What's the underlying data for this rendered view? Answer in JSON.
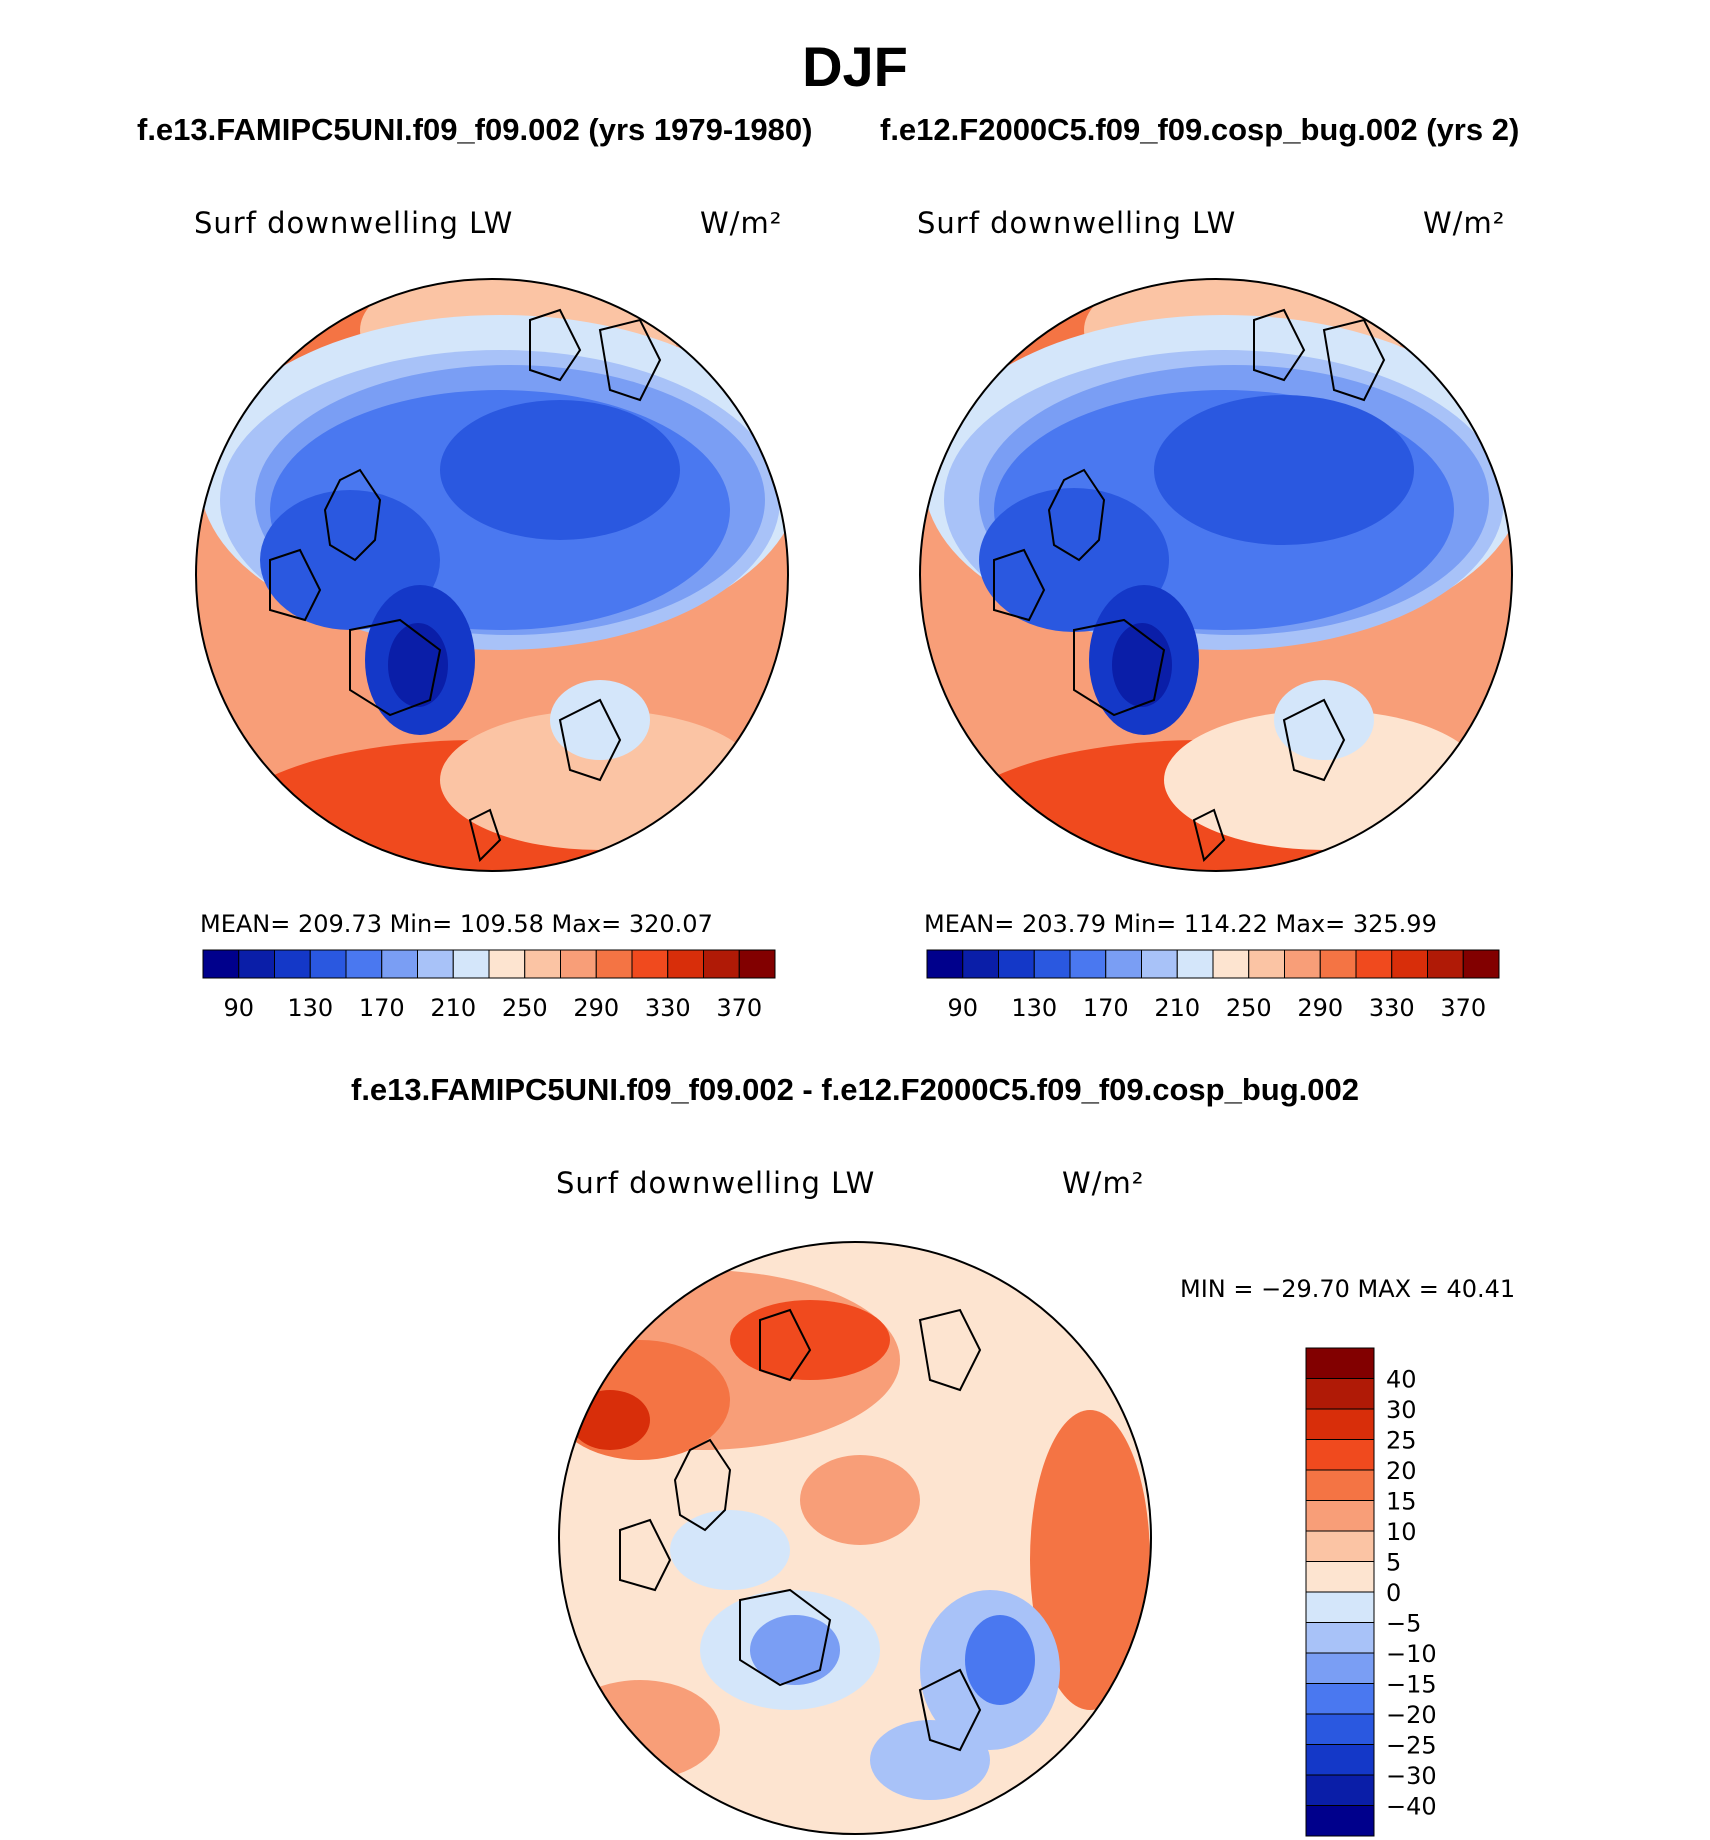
{
  "figure": {
    "title": "DJF",
    "subtitle_left": "f.e13.FAMIPC5UNI.f09_f09.002 (yrs 1979-1980)",
    "subtitle_right": "f.e12.F2000C5.f09_f09.cosp_bug.002 (yrs 2)",
    "diff_title": "f.e13.FAMIPC5UNI.f09_f09.002 - f.e12.F2000C5.f09_f09.cosp_bug.002"
  },
  "colors": {
    "abs_palette": [
      "#00008c",
      "#0a1ea8",
      "#1438c8",
      "#2a58e0",
      "#4a78f0",
      "#7a9ef4",
      "#a8c2f8",
      "#d4e6fa",
      "#fde4d0",
      "#fbc4a4",
      "#f89e78",
      "#f47444",
      "#f04a1e",
      "#d82e0a",
      "#b01a06",
      "#820000"
    ],
    "diff_palette": [
      "#00008c",
      "#0a1ea8",
      "#1438c8",
      "#2a58e0",
      "#4a78f0",
      "#7a9ef4",
      "#a8c2f8",
      "#d4e6fa",
      "#fde4d0",
      "#fbc4a4",
      "#f89e78",
      "#f47444",
      "#f04a1e",
      "#d82e0a",
      "#b01a06",
      "#820000"
    ]
  },
  "chart_data": [
    {
      "type": "heatmap",
      "projection": "north polar stereographic",
      "season": "DJF",
      "case": "f.e13.FAMIPC5UNI.f09_f09.002 (yrs 1979-1980)",
      "label_left": "Surf downwelling LW",
      "label_right": "W/m²",
      "units": "W/m2",
      "stats": {
        "mean": "209.73",
        "min": "109.58",
        "max": "320.07"
      },
      "stats_text": "MEAN= 209.73   Min= 109.58   Max= 320.07",
      "colorbar_ticks": [
        "90",
        "130",
        "170",
        "210",
        "250",
        "290",
        "330",
        "370"
      ],
      "contour_levels": [
        90,
        100,
        110,
        130,
        150,
        170,
        190,
        210,
        230,
        250,
        270,
        290,
        310,
        330,
        350,
        370
      ]
    },
    {
      "type": "heatmap",
      "projection": "north polar stereographic",
      "season": "DJF",
      "case": "f.e12.F2000C5.f09_f09.cosp_bug.002 (yrs 2)",
      "label_left": "Surf downwelling LW",
      "label_right": "W/m²",
      "units": "W/m2",
      "stats": {
        "mean": "203.79",
        "min": "114.22",
        "max": "325.99"
      },
      "stats_text": "MEAN= 203.79   Min= 114.22   Max= 325.99",
      "colorbar_ticks": [
        "90",
        "130",
        "170",
        "210",
        "250",
        "290",
        "330",
        "370"
      ],
      "contour_levels": [
        90,
        100,
        110,
        130,
        150,
        170,
        190,
        210,
        230,
        250,
        270,
        290,
        310,
        330,
        350,
        370
      ]
    },
    {
      "type": "heatmap",
      "projection": "north polar stereographic",
      "season": "DJF",
      "case": "difference",
      "label_left": "Surf downwelling LW",
      "label_right": "W/m²",
      "units": "W/m2",
      "stats": {
        "min": "−29.70",
        "max": "40.41"
      },
      "stats_text": "MIN = −29.70 MAX =   40.41",
      "colorbar_ticks": [
        "40",
        "30",
        "25",
        "20",
        "15",
        "10",
        "5",
        "0",
        "−5",
        "−10",
        "−15",
        "−20",
        "−25",
        "−30",
        "−40"
      ],
      "contour_levels": [
        -40,
        -30,
        -25,
        -20,
        -15,
        -10,
        -5,
        0,
        5,
        10,
        15,
        20,
        25,
        30,
        40
      ]
    }
  ]
}
